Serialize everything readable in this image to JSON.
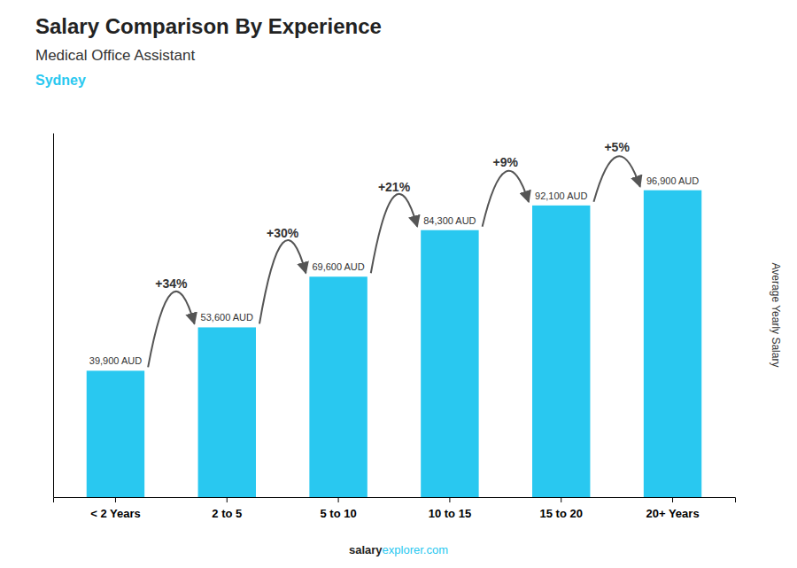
{
  "chart_data": {
    "type": "bar",
    "title": "Salary Comparison By Experience",
    "subtitle": "Medical Office Assistant",
    "ylabel": "Average Yearly Salary",
    "categories": [
      "< 2 Years",
      "2 to 5",
      "5 to 10",
      "10 to 15",
      "15 to 20",
      "20+ Years"
    ],
    "values": [
      39900,
      53600,
      69600,
      84300,
      92100,
      96900
    ],
    "value_labels": [
      "39,900 AUD",
      "53,600 AUD",
      "69,600 AUD",
      "84,300 AUD",
      "92,100 AUD",
      "96,900 AUD"
    ],
    "data_labels": true,
    "color": "#29c8f0",
    "ylim": [
      0,
      115000
    ],
    "tick_labels": "x",
    "annotations": {
      "city": "Sydney",
      "pct_changes": [
        "+34%",
        "+30%",
        "+21%",
        "+9%",
        "+5%"
      ],
      "footer": [
        "salary",
        "explorer.com"
      ]
    }
  }
}
